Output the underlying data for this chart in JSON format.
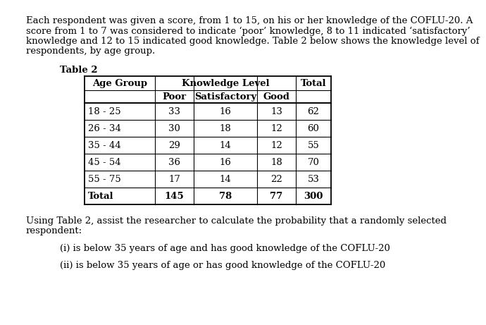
{
  "title_label": "Table 2",
  "rows": [
    [
      "18 - 25",
      "33",
      "16",
      "13",
      "62"
    ],
    [
      "26 - 34",
      "30",
      "18",
      "12",
      "60"
    ],
    [
      "35 - 44",
      "29",
      "14",
      "12",
      "55"
    ],
    [
      "45 - 54",
      "36",
      "16",
      "18",
      "70"
    ],
    [
      "55 - 75",
      "17",
      "14",
      "22",
      "53"
    ],
    [
      "Total",
      "145",
      "78",
      "77",
      "300"
    ]
  ],
  "paragraph1_lines": [
    "Each respondent was given a score, from 1 to 15, on his or her knowledge of the COFLU-20. A",
    "score from 1 to 7 was considered to indicate ‘poor’ knowledge, 8 to 11 indicated ‘satisfactory’",
    "knowledge and 12 to 15 indicated good knowledge. Table 2 below shows the knowledge level of",
    "respondents, by age group."
  ],
  "paragraph2_lines": [
    "Using Table 2, assist the researcher to calculate the probability that a randomly selected",
    "respondent:"
  ],
  "item_i": "(i) is below 35 years of age and has good knowledge of the COFLU-20",
  "item_ii": "(ii) is below 35 years of age or has good knowledge of the COFLU-20",
  "bg_color": "#ffffff",
  "text_color": "#000000",
  "font_size": 9.5
}
